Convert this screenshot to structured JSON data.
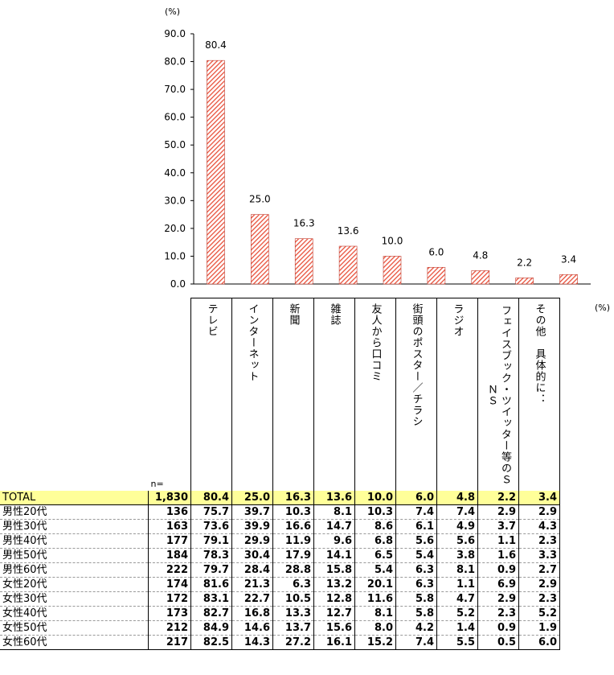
{
  "chart_data": {
    "type": "bar",
    "unit_label": "(%)",
    "categories": [
      "テレビ",
      "インターネット",
      "新聞",
      "雑誌",
      "友人から口コミ",
      "街頭のポスター/チラシ",
      "ラジオ",
      "フェイスブック・ツイッター等のSNS",
      "その他 具体的に:"
    ],
    "values": [
      80.4,
      25.0,
      16.3,
      13.6,
      10.0,
      6.0,
      4.8,
      2.2,
      3.4
    ],
    "value_labels": [
      "80.4",
      "25.0",
      "16.3",
      "13.6",
      "10.0",
      "6.0",
      "4.8",
      "2.2",
      "3.4"
    ],
    "ylim": [
      0,
      90
    ],
    "yticks": [
      "0.0",
      "10.0",
      "20.0",
      "30.0",
      "40.0",
      "50.0",
      "60.0",
      "70.0",
      "80.0",
      "90.0"
    ],
    "bar_color": "#e8503a",
    "grid": false,
    "legend": "none"
  },
  "table": {
    "unit_label": "(%)",
    "n_header": "n=",
    "headers": [
      "テレビ",
      "インターネット",
      "新聞",
      "雑誌",
      "友人から口コミ",
      "街頭のポスター／チラシ",
      "ラジオ",
      "フェイスブック・ツイッター等のＳＮＳ",
      "その他　具体的に："
    ],
    "rows": [
      {
        "label": "TOTAL",
        "n": "1,830",
        "values": [
          "80.4",
          "25.0",
          "16.3",
          "13.6",
          "10.0",
          "6.0",
          "4.8",
          "2.2",
          "3.4"
        ]
      },
      {
        "label": "男性20代",
        "n": "136",
        "values": [
          "75.7",
          "39.7",
          "10.3",
          "8.1",
          "10.3",
          "7.4",
          "7.4",
          "2.9",
          "2.9"
        ]
      },
      {
        "label": "男性30代",
        "n": "163",
        "values": [
          "73.6",
          "39.9",
          "16.6",
          "14.7",
          "8.6",
          "6.1",
          "4.9",
          "3.7",
          "4.3"
        ]
      },
      {
        "label": "男性40代",
        "n": "177",
        "values": [
          "79.1",
          "29.9",
          "11.9",
          "9.6",
          "6.8",
          "5.6",
          "5.6",
          "1.1",
          "2.3"
        ]
      },
      {
        "label": "男性50代",
        "n": "184",
        "values": [
          "78.3",
          "30.4",
          "17.9",
          "14.1",
          "6.5",
          "5.4",
          "3.8",
          "1.6",
          "3.3"
        ]
      },
      {
        "label": "男性60代",
        "n": "222",
        "values": [
          "79.7",
          "28.4",
          "28.8",
          "15.8",
          "5.4",
          "6.3",
          "8.1",
          "0.9",
          "2.7"
        ]
      },
      {
        "label": "女性20代",
        "n": "174",
        "values": [
          "81.6",
          "21.3",
          "6.3",
          "13.2",
          "20.1",
          "6.3",
          "1.1",
          "6.9",
          "2.9"
        ]
      },
      {
        "label": "女性30代",
        "n": "172",
        "values": [
          "83.1",
          "22.7",
          "10.5",
          "12.8",
          "11.6",
          "5.8",
          "4.7",
          "2.9",
          "2.3"
        ]
      },
      {
        "label": "女性40代",
        "n": "173",
        "values": [
          "82.7",
          "16.8",
          "13.3",
          "12.7",
          "8.1",
          "5.8",
          "5.2",
          "2.3",
          "5.2"
        ]
      },
      {
        "label": "女性50代",
        "n": "212",
        "values": [
          "84.9",
          "14.6",
          "13.7",
          "15.6",
          "8.0",
          "4.2",
          "1.4",
          "0.9",
          "1.9"
        ]
      },
      {
        "label": "女性60代",
        "n": "217",
        "values": [
          "82.5",
          "14.3",
          "27.2",
          "16.1",
          "15.2",
          "7.4",
          "5.5",
          "0.5",
          "6.0"
        ]
      }
    ]
  }
}
